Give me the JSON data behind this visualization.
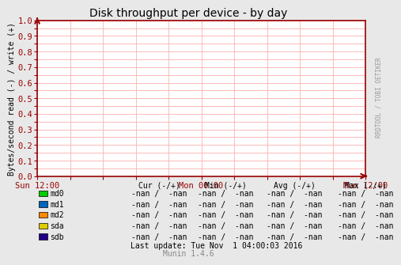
{
  "title": "Disk throughput per device - by day",
  "ylabel": "Bytes/second read (-) / write (+)",
  "right_label": "RRDTOOL / TOBI OETIKER",
  "xlim": [
    0,
    1
  ],
  "ylim": [
    0.0,
    1.0
  ],
  "yticks": [
    0.0,
    0.1,
    0.2,
    0.3,
    0.4,
    0.5,
    0.6,
    0.7,
    0.8,
    0.9,
    1.0
  ],
  "xtick_labels": [
    "Sun 12:00",
    "Mon 00:00",
    "Mon 12:00"
  ],
  "xtick_positions": [
    0.0,
    0.5,
    1.0
  ],
  "grid_color": "#ffb0b0",
  "bg_color": "#e8e8e8",
  "plot_bg_color": "#ffffff",
  "axis_color": "#990000",
  "arrow_color": "#990000",
  "legend_entries": [
    {
      "label": "md0",
      "color": "#00cc00"
    },
    {
      "label": "md1",
      "color": "#0066bb"
    },
    {
      "label": "md2",
      "color": "#ff8800"
    },
    {
      "label": "sda",
      "color": "#ddcc00"
    },
    {
      "label": "sdb",
      "color": "#220088"
    }
  ],
  "col_headers": [
    "Cur (-/+)",
    "Min (-/+)",
    "Avg (-/+)",
    "Max (-/+)"
  ],
  "nan_value": "-nan /  -nan",
  "last_update": "Last update: Tue Nov  1 04:00:03 2016",
  "munin_label": "Munin 1.4.6",
  "right_side_text": "RRDTOOL / TOBI OETIKER"
}
